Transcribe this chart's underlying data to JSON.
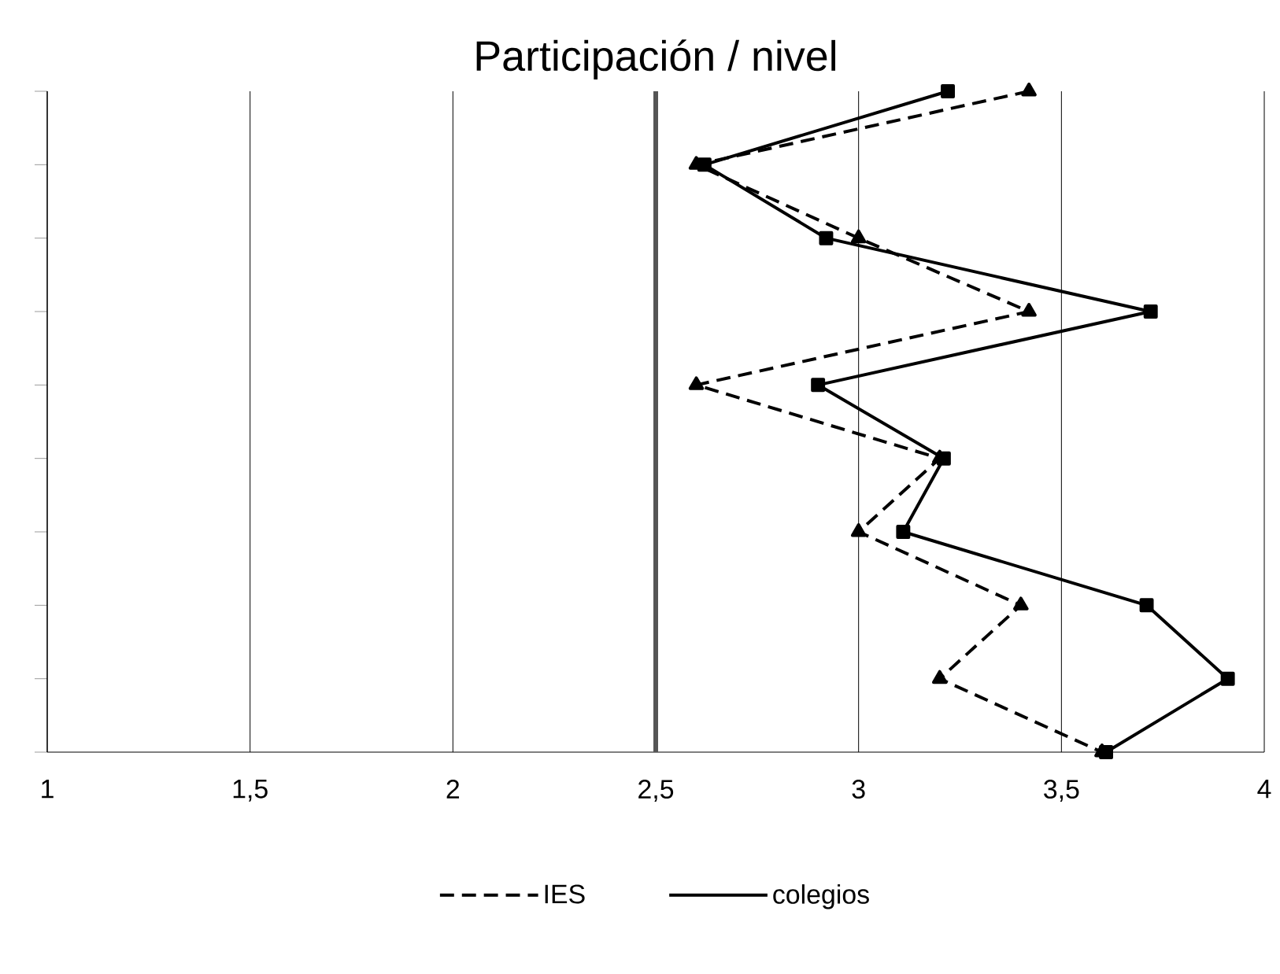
{
  "chart_data": {
    "type": "line",
    "title": "Participación / nivel",
    "categories": [
      null,
      null,
      null,
      null,
      null,
      null,
      null,
      null,
      null,
      null
    ],
    "orientation": "horizontal",
    "series": [
      {
        "name": "IES",
        "color": "#000000",
        "line_style": "dashed",
        "marker": "triangle",
        "values": [
          3.42,
          2.6,
          3.0,
          3.42,
          2.6,
          3.2,
          3.0,
          3.4,
          3.2,
          3.6
        ]
      },
      {
        "name": "colegios",
        "color": "#000000",
        "line_style": "solid",
        "marker": "square",
        "values": [
          3.22,
          2.62,
          2.92,
          3.72,
          2.9,
          3.21,
          3.11,
          3.71,
          3.91,
          3.61
        ]
      }
    ],
    "xlim": [
      1,
      4
    ],
    "xticks": [
      1,
      {
        "value": 1.5,
        "label": "1,5"
      },
      2,
      {
        "value": 2.5,
        "label": "2,5"
      },
      3,
      {
        "value": 3.5,
        "label": "3,5"
      },
      4
    ],
    "ref_lines": [
      {
        "axis": "x",
        "value": 2.5,
        "color": "#555555"
      }
    ],
    "grid": "x",
    "legend": "bottom"
  }
}
